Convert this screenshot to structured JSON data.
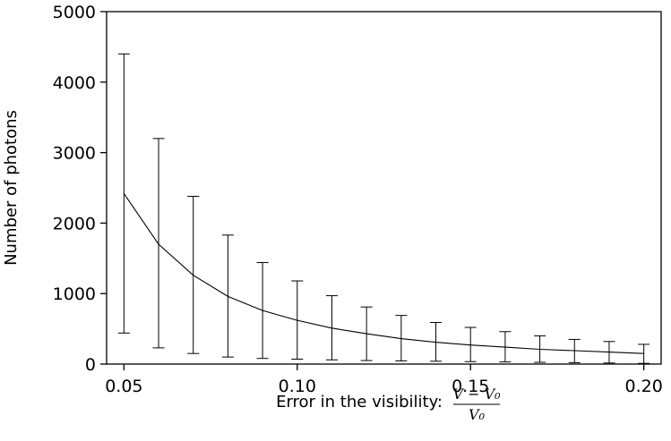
{
  "chart_data": {
    "type": "line",
    "title": "",
    "xlabel": "Error in the visibility:",
    "xlabel_fraction": {
      "numerator": "V − V₀",
      "denominator": "V₀"
    },
    "ylabel": "Number of photons",
    "xlim": [
      0.045,
      0.205
    ],
    "ylim": [
      0,
      5000
    ],
    "xticks": [
      0.05,
      0.1,
      0.15,
      0.2
    ],
    "xtick_labels": [
      "0.05",
      "0.10",
      "0.15",
      "0.20"
    ],
    "yticks": [
      0,
      1000,
      2000,
      3000,
      4000,
      5000
    ],
    "ytick_labels": [
      "0",
      "1000",
      "2000",
      "3000",
      "4000",
      "5000"
    ],
    "grid": false,
    "legend": "none",
    "line_color": "#000000",
    "series": [
      {
        "x": [
          0.05,
          0.06,
          0.07,
          0.08,
          0.09,
          0.1,
          0.11,
          0.12,
          0.13,
          0.14,
          0.15,
          0.16,
          0.17,
          0.18,
          0.19,
          0.2
        ],
        "y": [
          2420,
          1700,
          1260,
          960,
          760,
          620,
          510,
          430,
          360,
          310,
          270,
          240,
          210,
          190,
          170,
          150
        ],
        "error_low": [
          440,
          230,
          150,
          100,
          80,
          70,
          60,
          50,
          45,
          40,
          35,
          30,
          25,
          20,
          15,
          10
        ],
        "error_high": [
          4400,
          3200,
          2380,
          1830,
          1440,
          1180,
          970,
          810,
          690,
          590,
          520,
          460,
          400,
          350,
          320,
          280
        ]
      }
    ]
  }
}
